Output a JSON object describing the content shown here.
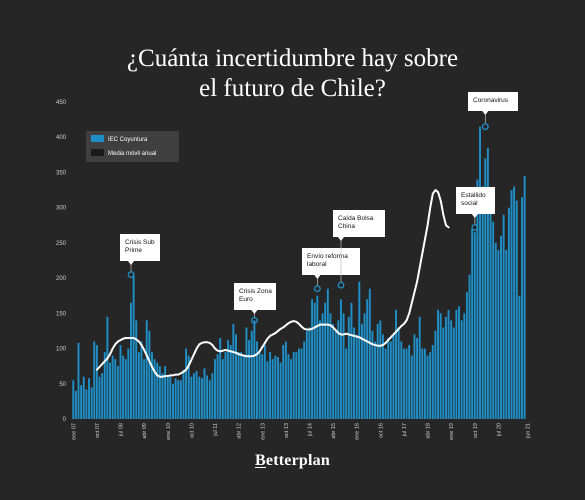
{
  "title": {
    "line1": "¿Cuánta incertidumbre hay sobre",
    "line2": "el futuro de Chile?"
  },
  "brand": "Betterplan",
  "colors": {
    "background": "#262626",
    "bars": "#1f8fc7",
    "line": "#ffffff",
    "axis_text": "#cfcfcf"
  },
  "chart_data": {
    "type": "bar",
    "ylim": [
      0,
      450
    ],
    "yticks": [
      0,
      50,
      100,
      150,
      200,
      250,
      300,
      350,
      400,
      450
    ],
    "xticks": [
      {
        "label": "ene 07",
        "month_index": 0
      },
      {
        "label": "oct 07",
        "month_index": 9
      },
      {
        "label": "jul 08",
        "month_index": 18
      },
      {
        "label": "abr 09",
        "month_index": 27
      },
      {
        "label": "ene 10",
        "month_index": 36
      },
      {
        "label": "oct 10",
        "month_index": 45
      },
      {
        "label": "jul 11",
        "month_index": 54
      },
      {
        "label": "abr 12",
        "month_index": 63
      },
      {
        "label": "ene 13",
        "month_index": 72
      },
      {
        "label": "oct 13",
        "month_index": 81
      },
      {
        "label": "jul 14",
        "month_index": 90
      },
      {
        "label": "abr 15",
        "month_index": 99
      },
      {
        "label": "ene 16",
        "month_index": 108
      },
      {
        "label": "oct 16",
        "month_index": 117
      },
      {
        "label": "jul 17",
        "month_index": 126
      },
      {
        "label": "abr 18",
        "month_index": 135
      },
      {
        "label": "ene 19",
        "month_index": 144
      },
      {
        "label": "oct 19",
        "month_index": 153
      },
      {
        "label": "jul 20",
        "month_index": 162
      },
      {
        "label": "jun 21",
        "month_index": 173
      }
    ],
    "legend": {
      "placement": "top-left",
      "entries": [
        {
          "label": "IEC Coyuntura",
          "color": "#1f8fc7"
        },
        {
          "label": "Media móvil anual",
          "color": "#ffffff"
        }
      ]
    },
    "series": [
      {
        "name": "IEC Coyuntura",
        "kind": "bar",
        "start": "ene 07",
        "frequency": "monthly",
        "values": [
          55,
          40,
          108,
          48,
          60,
          42,
          58,
          45,
          110,
          105,
          60,
          65,
          95,
          145,
          80,
          90,
          85,
          75,
          105,
          90,
          85,
          100,
          165,
          205,
          140,
          95,
          110,
          85,
          140,
          125,
          95,
          85,
          80,
          75,
          65,
          75,
          60,
          60,
          50,
          58,
          55,
          55,
          70,
          100,
          90,
          60,
          65,
          68,
          60,
          58,
          72,
          62,
          55,
          65,
          85,
          92,
          115,
          85,
          95,
          112,
          105,
          135,
          120,
          95,
          95,
          90,
          130,
          112,
          125,
          140,
          110,
          95,
          92,
          105,
          82,
          95,
          85,
          90,
          88,
          80,
          105,
          110,
          92,
          85,
          95,
          95,
          100,
          100,
          110,
          125,
          130,
          170,
          165,
          175,
          140,
          150,
          165,
          185,
          150,
          135,
          125,
          140,
          170,
          150,
          100,
          145,
          165,
          130,
          120,
          195,
          135,
          150,
          170,
          185,
          125,
          110,
          135,
          140,
          120,
          100,
          115,
          110,
          120,
          155,
          130,
          110,
          100,
          100,
          105,
          90,
          120,
          115,
          145,
          100,
          100,
          90,
          95,
          105,
          125,
          155,
          150,
          130,
          145,
          155,
          140,
          130,
          155,
          160,
          140,
          150,
          180,
          205,
          270,
          265,
          340,
          415,
          330,
          370,
          385,
          320,
          280,
          250,
          240,
          260,
          290,
          240,
          300,
          325,
          330,
          310,
          175,
          315,
          345
        ]
      },
      {
        "name": "Media móvil anual",
        "kind": "line",
        "start": "oct 07",
        "frequency": "monthly",
        "values": [
          70,
          74,
          78,
          82,
          86,
          92,
          100,
          106,
          110,
          112,
          114,
          115,
          115,
          115,
          115,
          113,
          110,
          105,
          98,
          90,
          82,
          74,
          67,
          62,
          60,
          60,
          61,
          61,
          62,
          62,
          63,
          63,
          65,
          67,
          70,
          76,
          84,
          92,
          100,
          106,
          108,
          109,
          109,
          108,
          105,
          100,
          97,
          96,
          97,
          98,
          97,
          96,
          95,
          94,
          92,
          91,
          90,
          89,
          89,
          89,
          90,
          92,
          96,
          102,
          108,
          114,
          118,
          120,
          122,
          125,
          128,
          130,
          133,
          136,
          138,
          139,
          138,
          135,
          131,
          128,
          127,
          127,
          128,
          130,
          132,
          134,
          134,
          134,
          134,
          133,
          130,
          126,
          122,
          120,
          120,
          121,
          120,
          119,
          118,
          117,
          116,
          114,
          112,
          110,
          108,
          106,
          105,
          104,
          104,
          105,
          108,
          112,
          116,
          120,
          124,
          128,
          132,
          135,
          140,
          150,
          165,
          180,
          195,
          215,
          235,
          255,
          275,
          300,
          320,
          325,
          322,
          310,
          290,
          275,
          272
        ]
      }
    ],
    "annotations": [
      {
        "label": "Crisis Sub Prime",
        "month_index": 22,
        "value": 205
      },
      {
        "label": "Crisis Zona Euro",
        "month_index": 69,
        "value": 140
      },
      {
        "label": "Envío reforma laboral",
        "month_index": 93,
        "value": 185
      },
      {
        "label": "Caída Bolsa China",
        "month_index": 102,
        "value": 190
      },
      {
        "label": "Estallido social",
        "month_index": 153,
        "value": 272
      },
      {
        "label": "Coronavirus",
        "month_index": 157,
        "value": 415
      }
    ]
  }
}
